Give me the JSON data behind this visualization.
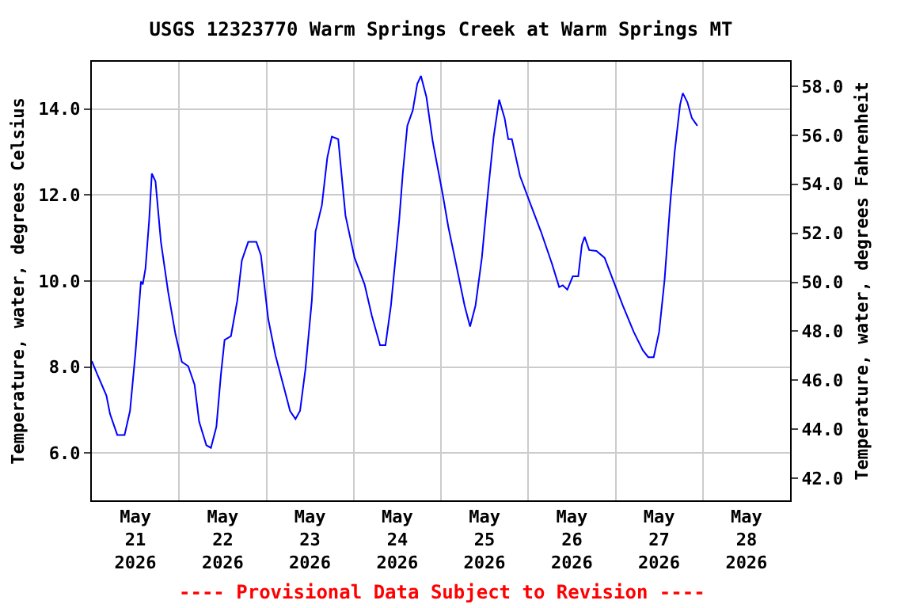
{
  "chart_data": {
    "type": "line",
    "title": "USGS 12323770 Warm Springs Creek at Warm Springs MT",
    "ylabel": "Temperature, water, degrees Celsius",
    "y2label": "Temperature, water, degrees Fahrenheit",
    "annotations": [
      "---- Provisional Data Subject to Revision ----"
    ],
    "x": [
      "2026-05-21T00:00",
      "2026-05-21T01:30",
      "2026-05-21T04:00",
      "2026-05-21T05:00",
      "2026-05-21T07:00",
      "2026-05-21T09:00",
      "2026-05-21T10:30",
      "2026-05-21T12:00",
      "2026-05-21T13:30",
      "2026-05-21T14:00",
      "2026-05-21T14:45",
      "2026-05-21T15:45",
      "2026-05-21T16:30",
      "2026-05-21T17:30",
      "2026-05-21T19:00",
      "2026-05-21T21:00",
      "2026-05-21T23:00",
      "2026-05-22T00:45",
      "2026-05-22T02:30",
      "2026-05-22T04:15",
      "2026-05-22T05:30",
      "2026-05-22T07:30",
      "2026-05-22T08:45",
      "2026-05-22T10:15",
      "2026-05-22T11:30",
      "2026-05-22T12:30",
      "2026-05-22T14:15",
      "2026-05-22T16:00",
      "2026-05-22T17:15",
      "2026-05-22T19:00",
      "2026-05-22T21:15",
      "2026-05-22T22:30",
      "2026-05-23T00:30",
      "2026-05-23T02:30",
      "2026-05-23T05:00",
      "2026-05-23T06:30",
      "2026-05-23T08:00",
      "2026-05-23T09:15",
      "2026-05-23T10:45",
      "2026-05-23T12:30",
      "2026-05-23T13:30",
      "2026-05-23T15:15",
      "2026-05-23T16:45",
      "2026-05-23T18:00",
      "2026-05-23T19:45",
      "2026-05-23T21:45",
      "2026-05-24T00:15",
      "2026-05-24T03:00",
      "2026-05-24T05:00",
      "2026-05-24T07:15",
      "2026-05-24T08:45",
      "2026-05-24T10:15",
      "2026-05-24T12:30",
      "2026-05-24T13:30",
      "2026-05-24T14:45",
      "2026-05-24T16:15",
      "2026-05-24T17:30",
      "2026-05-24T18:30",
      "2026-05-24T20:00",
      "2026-05-24T21:45",
      "2026-05-25T00:30",
      "2026-05-25T02:00",
      "2026-05-25T03:30",
      "2026-05-25T06:30",
      "2026-05-25T08:00",
      "2026-05-25T09:30",
      "2026-05-25T11:15",
      "2026-05-25T13:00",
      "2026-05-25T14:30",
      "2026-05-25T16:00",
      "2026-05-25T17:30",
      "2026-05-25T18:30",
      "2026-05-25T19:30",
      "2026-05-25T21:45",
      "2026-05-26T00:45",
      "2026-05-26T03:30",
      "2026-05-26T06:30",
      "2026-05-26T08:30",
      "2026-05-26T09:30",
      "2026-05-26T10:45",
      "2026-05-26T12:15",
      "2026-05-26T13:45",
      "2026-05-26T14:45",
      "2026-05-26T15:30",
      "2026-05-26T16:45",
      "2026-05-26T18:45",
      "2026-05-26T21:00",
      "2026-05-26T23:15",
      "2026-05-27T02:00",
      "2026-05-27T05:00",
      "2026-05-27T07:30",
      "2026-05-27T09:00",
      "2026-05-27T10:30",
      "2026-05-27T12:00",
      "2026-05-27T13:30",
      "2026-05-27T15:00",
      "2026-05-27T16:15",
      "2026-05-27T17:45",
      "2026-05-27T18:30",
      "2026-05-27T19:45",
      "2026-05-27T21:00",
      "2026-05-27T22:30"
    ],
    "series": [
      {
        "color": "#0000ff",
        "values": [
          8.14,
          7.83,
          7.34,
          6.91,
          6.42,
          6.42,
          6.98,
          8.33,
          9.99,
          9.92,
          10.29,
          11.4,
          12.5,
          12.32,
          10.91,
          9.74,
          8.76,
          8.12,
          8.02,
          7.59,
          6.73,
          6.18,
          6.12,
          6.61,
          7.83,
          8.63,
          8.72,
          9.55,
          10.48,
          10.91,
          10.91,
          10.6,
          9.12,
          8.27,
          7.47,
          6.98,
          6.79,
          6.98,
          7.96,
          9.55,
          11.15,
          11.76,
          12.87,
          13.36,
          13.3,
          11.52,
          10.54,
          9.92,
          9.19,
          8.51,
          8.51,
          9.43,
          11.4,
          12.5,
          13.61,
          13.97,
          14.59,
          14.77,
          14.28,
          13.24,
          12.01,
          11.27,
          10.66,
          9.43,
          8.94,
          9.43,
          10.54,
          12.13,
          13.36,
          14.22,
          13.79,
          13.3,
          13.3,
          12.44,
          11.76,
          11.15,
          10.41,
          9.86,
          9.9,
          9.8,
          10.11,
          10.11,
          10.84,
          11.03,
          10.72,
          10.7,
          10.54,
          10.04,
          9.43,
          8.82,
          8.39,
          8.23,
          8.23,
          8.82,
          10.04,
          11.76,
          12.99,
          14.1,
          14.37,
          14.16,
          13.79,
          13.61
        ]
      }
    ],
    "xlim": [
      "2026-05-21T00:00",
      "2026-05-29T00:00"
    ],
    "xticks": [
      {
        "value": "2026-05-21T12:00",
        "label": "May\n21\n2026"
      },
      {
        "value": "2026-05-22T12:00",
        "label": "May\n22\n2026"
      },
      {
        "value": "2026-05-23T12:00",
        "label": "May\n23\n2026"
      },
      {
        "value": "2026-05-24T12:00",
        "label": "May\n24\n2026"
      },
      {
        "value": "2026-05-25T12:00",
        "label": "May\n25\n2026"
      },
      {
        "value": "2026-05-26T12:00",
        "label": "May\n26\n2026"
      },
      {
        "value": "2026-05-27T12:00",
        "label": "May\n27\n2026"
      },
      {
        "value": "2026-05-28T12:00",
        "label": "May\n28\n2026"
      },
      {
        "value": "2026-05-22T00:00",
        "label": null
      },
      {
        "value": "2026-05-23T00:00",
        "label": null
      },
      {
        "value": "2026-05-24T00:00",
        "label": null
      },
      {
        "value": "2026-05-25T00:00",
        "label": null
      },
      {
        "value": "2026-05-26T00:00",
        "label": null
      },
      {
        "value": "2026-05-27T00:00",
        "label": null
      },
      {
        "value": "2026-05-28T00:00",
        "label": null
      }
    ],
    "ylim": [
      4.9,
      15.1
    ],
    "yticks": [
      {
        "value": 6,
        "label": "6.0"
      },
      {
        "value": 8,
        "label": "8.0"
      },
      {
        "value": 10,
        "label": "10.0"
      },
      {
        "value": 12,
        "label": "12.0"
      },
      {
        "value": 14,
        "label": "14.0"
      }
    ],
    "y2lim": [
      41.1,
      59.0
    ],
    "y2ticks": [
      {
        "value": 42,
        "label": "42.0"
      },
      {
        "value": 44,
        "label": "44.0"
      },
      {
        "value": 46,
        "label": "46.0"
      },
      {
        "value": 48,
        "label": "48.0"
      },
      {
        "value": 50,
        "label": "50.0"
      },
      {
        "value": 52,
        "label": "52.0"
      },
      {
        "value": 54,
        "label": "54.0"
      },
      {
        "value": 56,
        "label": "56.0"
      },
      {
        "value": 58,
        "label": "58.0"
      }
    ],
    "grid": true,
    "marker": "none",
    "line_style": "solid"
  }
}
